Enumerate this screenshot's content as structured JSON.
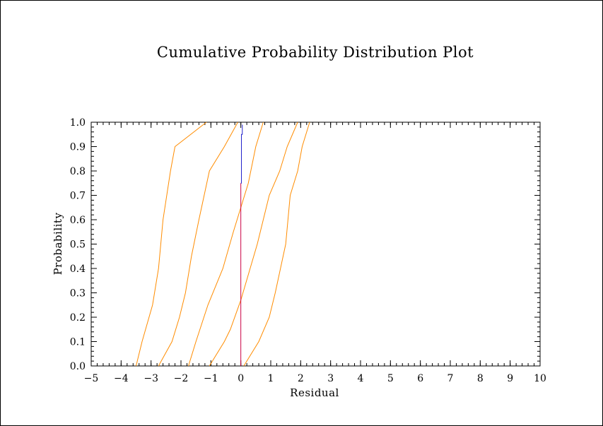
{
  "chart_data": {
    "type": "line",
    "title": "Cumulative Probability Distribution Plot",
    "xlabel": "Residual",
    "ylabel": "Probability",
    "xlim": [
      -5,
      10
    ],
    "ylim": [
      0,
      1
    ],
    "x_ticks": [
      -5,
      -4,
      -3,
      -2,
      -1,
      0,
      1,
      2,
      3,
      4,
      5,
      6,
      7,
      8,
      9,
      10
    ],
    "y_ticks": [
      0.0,
      0.1,
      0.2,
      0.3,
      0.4,
      0.5,
      0.6,
      0.7,
      0.8,
      0.9,
      1.0
    ],
    "grid": false,
    "series": [
      {
        "color": "#ff8c00",
        "points": [
          [
            -3.5,
            0.0
          ],
          [
            -3.3,
            0.1
          ],
          [
            -2.95,
            0.25
          ],
          [
            -2.75,
            0.4
          ],
          [
            -2.6,
            0.6
          ],
          [
            -2.35,
            0.8
          ],
          [
            -2.2,
            0.9
          ],
          [
            -1.15,
            1.0
          ]
        ]
      },
      {
        "color": "#ff8c00",
        "points": [
          [
            -2.75,
            0.0
          ],
          [
            -2.3,
            0.1
          ],
          [
            -2.05,
            0.2
          ],
          [
            -1.85,
            0.3
          ],
          [
            -1.65,
            0.45
          ],
          [
            -1.4,
            0.6
          ],
          [
            -1.05,
            0.8
          ],
          [
            -0.55,
            0.9
          ],
          [
            -0.1,
            1.0
          ]
        ]
      },
      {
        "color": "#ff8c00",
        "points": [
          [
            -1.75,
            0.0
          ],
          [
            -1.5,
            0.1
          ],
          [
            -1.1,
            0.25
          ],
          [
            -0.6,
            0.4
          ],
          [
            -0.25,
            0.55
          ],
          [
            0.25,
            0.75
          ],
          [
            0.5,
            0.9
          ],
          [
            0.75,
            1.0
          ]
        ]
      },
      {
        "color": "#ff8c00",
        "points": [
          [
            -1.05,
            0.0
          ],
          [
            -0.55,
            0.1
          ],
          [
            -0.35,
            0.15
          ],
          [
            0.0,
            0.27
          ],
          [
            0.55,
            0.5
          ],
          [
            0.95,
            0.7
          ],
          [
            1.3,
            0.8
          ],
          [
            1.55,
            0.9
          ],
          [
            1.9,
            1.0
          ]
        ]
      },
      {
        "color": "#ff8c00",
        "points": [
          [
            0.1,
            0.0
          ],
          [
            0.6,
            0.1
          ],
          [
            0.95,
            0.2
          ],
          [
            1.15,
            0.3
          ],
          [
            1.5,
            0.5
          ],
          [
            1.65,
            0.7
          ],
          [
            1.9,
            0.8
          ],
          [
            2.05,
            0.9
          ],
          [
            2.3,
            1.0
          ]
        ]
      },
      {
        "color": "#cc0044",
        "points": [
          [
            0.0,
            0.0
          ],
          [
            0.0,
            0.75
          ]
        ]
      },
      {
        "color": "#2222cc",
        "points": [
          [
            0.0,
            0.75
          ],
          [
            0.02,
            0.75
          ],
          [
            0.02,
            0.95
          ],
          [
            0.05,
            0.95
          ],
          [
            0.05,
            0.99
          ]
        ]
      }
    ]
  }
}
